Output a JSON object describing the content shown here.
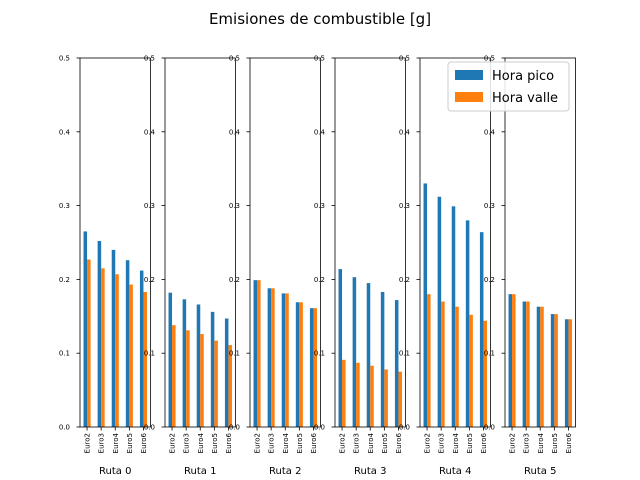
{
  "chart_data": {
    "type": "bar",
    "title": "Emisiones de combustible [g]",
    "ylim": [
      0,
      0.5
    ],
    "yticks": [
      "0.0",
      "0.1",
      "0.2",
      "0.3",
      "0.4",
      "0.5"
    ],
    "categories": [
      "Euro2",
      "Euro3",
      "Euro4",
      "Euro5",
      "Euro6"
    ],
    "legend_position": "top-right",
    "grid": false,
    "series_colors": {
      "Hora pico": "#1f77b4",
      "Hora valle": "#ff7f0e"
    },
    "legend": [
      "Hora pico",
      "Hora valle"
    ],
    "subplots": [
      {
        "xlabel": "Ruta 0",
        "series": [
          {
            "name": "Hora pico",
            "values": [
              0.265,
              0.252,
              0.24,
              0.226,
              0.212
            ]
          },
          {
            "name": "Hora valle",
            "values": [
              0.227,
              0.215,
              0.207,
              0.193,
              0.183
            ]
          }
        ]
      },
      {
        "xlabel": "Ruta 1",
        "series": [
          {
            "name": "Hora pico",
            "values": [
              0.182,
              0.173,
              0.166,
              0.156,
              0.147
            ]
          },
          {
            "name": "Hora valle",
            "values": [
              0.138,
              0.131,
              0.126,
              0.117,
              0.111
            ]
          }
        ]
      },
      {
        "xlabel": "Ruta 2",
        "series": [
          {
            "name": "Hora pico",
            "values": [
              0.199,
              0.188,
              0.181,
              0.169,
              0.161
            ]
          },
          {
            "name": "Hora valle",
            "values": [
              0.199,
              0.188,
              0.181,
              0.169,
              0.161
            ]
          }
        ]
      },
      {
        "xlabel": "Ruta 3",
        "series": [
          {
            "name": "Hora pico",
            "values": [
              0.214,
              0.203,
              0.195,
              0.183,
              0.172
            ]
          },
          {
            "name": "Hora valle",
            "values": [
              0.091,
              0.087,
              0.083,
              0.078,
              0.075
            ]
          }
        ]
      },
      {
        "xlabel": "Ruta 4",
        "series": [
          {
            "name": "Hora pico",
            "values": [
              0.33,
              0.312,
              0.299,
              0.28,
              0.264
            ]
          },
          {
            "name": "Hora valle",
            "values": [
              0.18,
              0.17,
              0.163,
              0.152,
              0.144
            ]
          }
        ]
      },
      {
        "xlabel": "Ruta 5",
        "series": [
          {
            "name": "Hora pico",
            "values": [
              0.18,
              0.17,
              0.163,
              0.153,
              0.146
            ]
          },
          {
            "name": "Hora valle",
            "values": [
              0.18,
              0.17,
              0.163,
              0.153,
              0.146
            ]
          }
        ]
      }
    ]
  }
}
